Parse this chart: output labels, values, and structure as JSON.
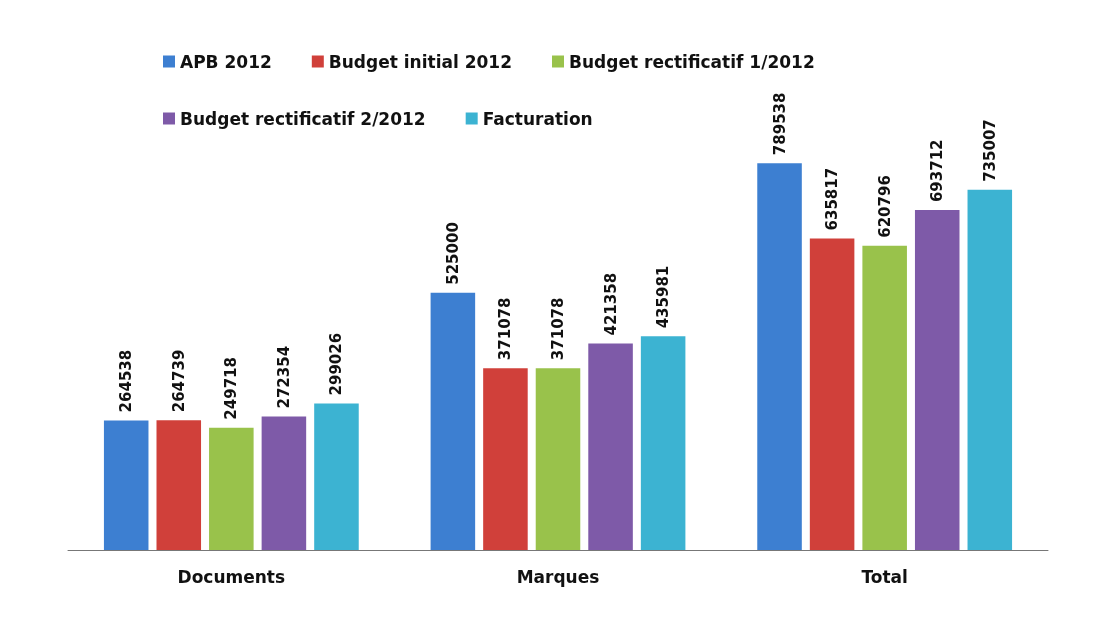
{
  "chart_data": {
    "type": "bar",
    "categories": [
      "Documents",
      "Marques",
      "Total"
    ],
    "series": [
      {
        "name": "APB 2012",
        "color": "#3d7fd1",
        "values": [
          264538,
          525000,
          789538
        ]
      },
      {
        "name": "Budget initial 2012",
        "color": "#d0403a",
        "values": [
          264739,
          371078,
          635817
        ]
      },
      {
        "name": "Budget rectificatif 1/2012",
        "color": "#99c24b",
        "values": [
          249718,
          371078,
          620796
        ]
      },
      {
        "name": "Budget rectificatif 2/2012",
        "color": "#7e5aa8",
        "values": [
          272354,
          421358,
          693712
        ]
      },
      {
        "name": "Facturation",
        "color": "#3cb3d2",
        "values": [
          299026,
          435981,
          735007
        ]
      }
    ],
    "data_labels": true,
    "legend": "top"
  }
}
